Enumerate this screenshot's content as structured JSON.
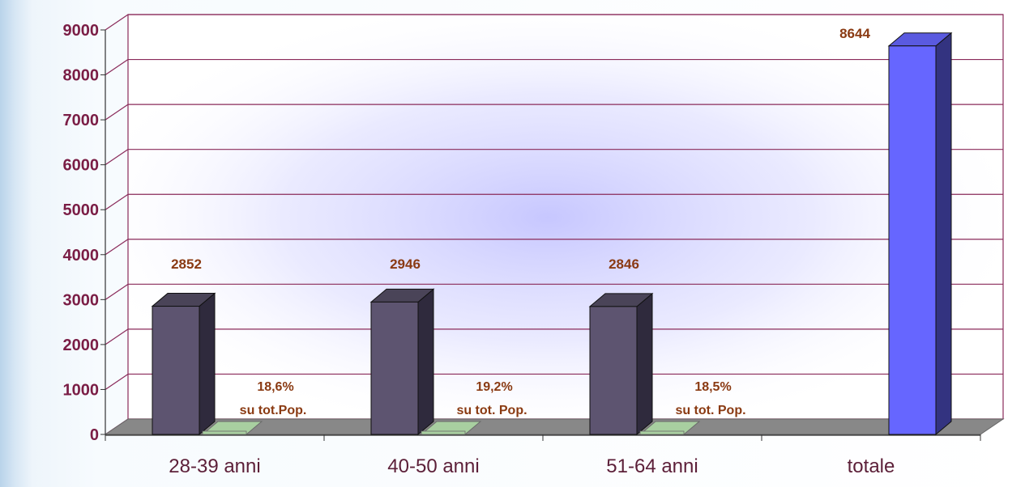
{
  "chart_data": {
    "type": "bar",
    "title": "",
    "xlabel": "",
    "ylabel": "",
    "ylim": [
      0,
      9000
    ],
    "yticks": [
      "0",
      "1000",
      "2000",
      "3000",
      "4000",
      "5000",
      "6000",
      "7000",
      "8000",
      "9000"
    ],
    "grid": true,
    "legend": "none",
    "categories": [
      "28-39 anni",
      "40-50 anni",
      "51-64 anni",
      "totale"
    ],
    "series": [
      {
        "values": [
          2852,
          2946,
          2846,
          8644
        ],
        "labels": [
          "2852",
          "2946",
          "2846",
          "8644"
        ],
        "colors": [
          "#5d5470",
          "#5d5470",
          "#5d5470",
          "#6666ff"
        ]
      },
      {
        "values": [
          18.6,
          19.2,
          18.5,
          null
        ],
        "labels": [
          "18,6%",
          "19,2%",
          "18,5%",
          null
        ],
        "sublabels": [
          "su tot.Pop.",
          "su tot. Pop.",
          "su tot. Pop.",
          null
        ],
        "color": "#a8cfa0"
      }
    ],
    "colors": {
      "gridline": "#8a2a5a",
      "floor": "#888888",
      "label_text": "#8a3a12",
      "axis_text": "#7a1d45",
      "plot_glow": "#c4c4ff"
    }
  }
}
